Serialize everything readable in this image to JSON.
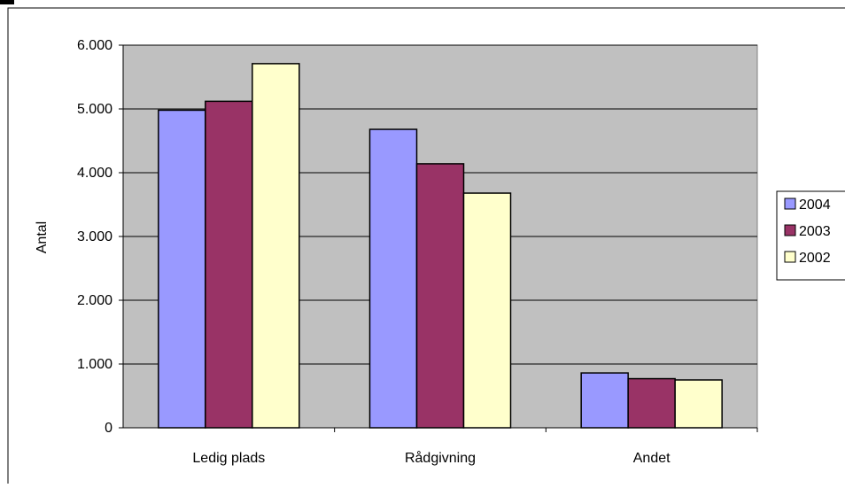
{
  "chart_data": {
    "type": "bar",
    "title": "",
    "xlabel": "",
    "ylabel": "Antal",
    "categories": [
      "Ledig plads",
      "Rådgivning",
      "Andet"
    ],
    "series": [
      {
        "name": "2004",
        "values": [
          4980,
          4680,
          860
        ],
        "color": "#9999ff"
      },
      {
        "name": "2003",
        "values": [
          5120,
          4140,
          770
        ],
        "color": "#993366"
      },
      {
        "name": "2002",
        "values": [
          5710,
          3680,
          750
        ],
        "color": "#ffffcc"
      }
    ],
    "ylim": [
      0,
      6000
    ],
    "yticks": [
      0,
      1000,
      2000,
      3000,
      4000,
      5000,
      6000
    ],
    "ytick_labels": [
      "0",
      "1.000",
      "2.000",
      "3.000",
      "4.000",
      "5.000",
      "6.000"
    ],
    "grid": true,
    "plot_background": "#c0c0c0",
    "legend_position": "right"
  }
}
